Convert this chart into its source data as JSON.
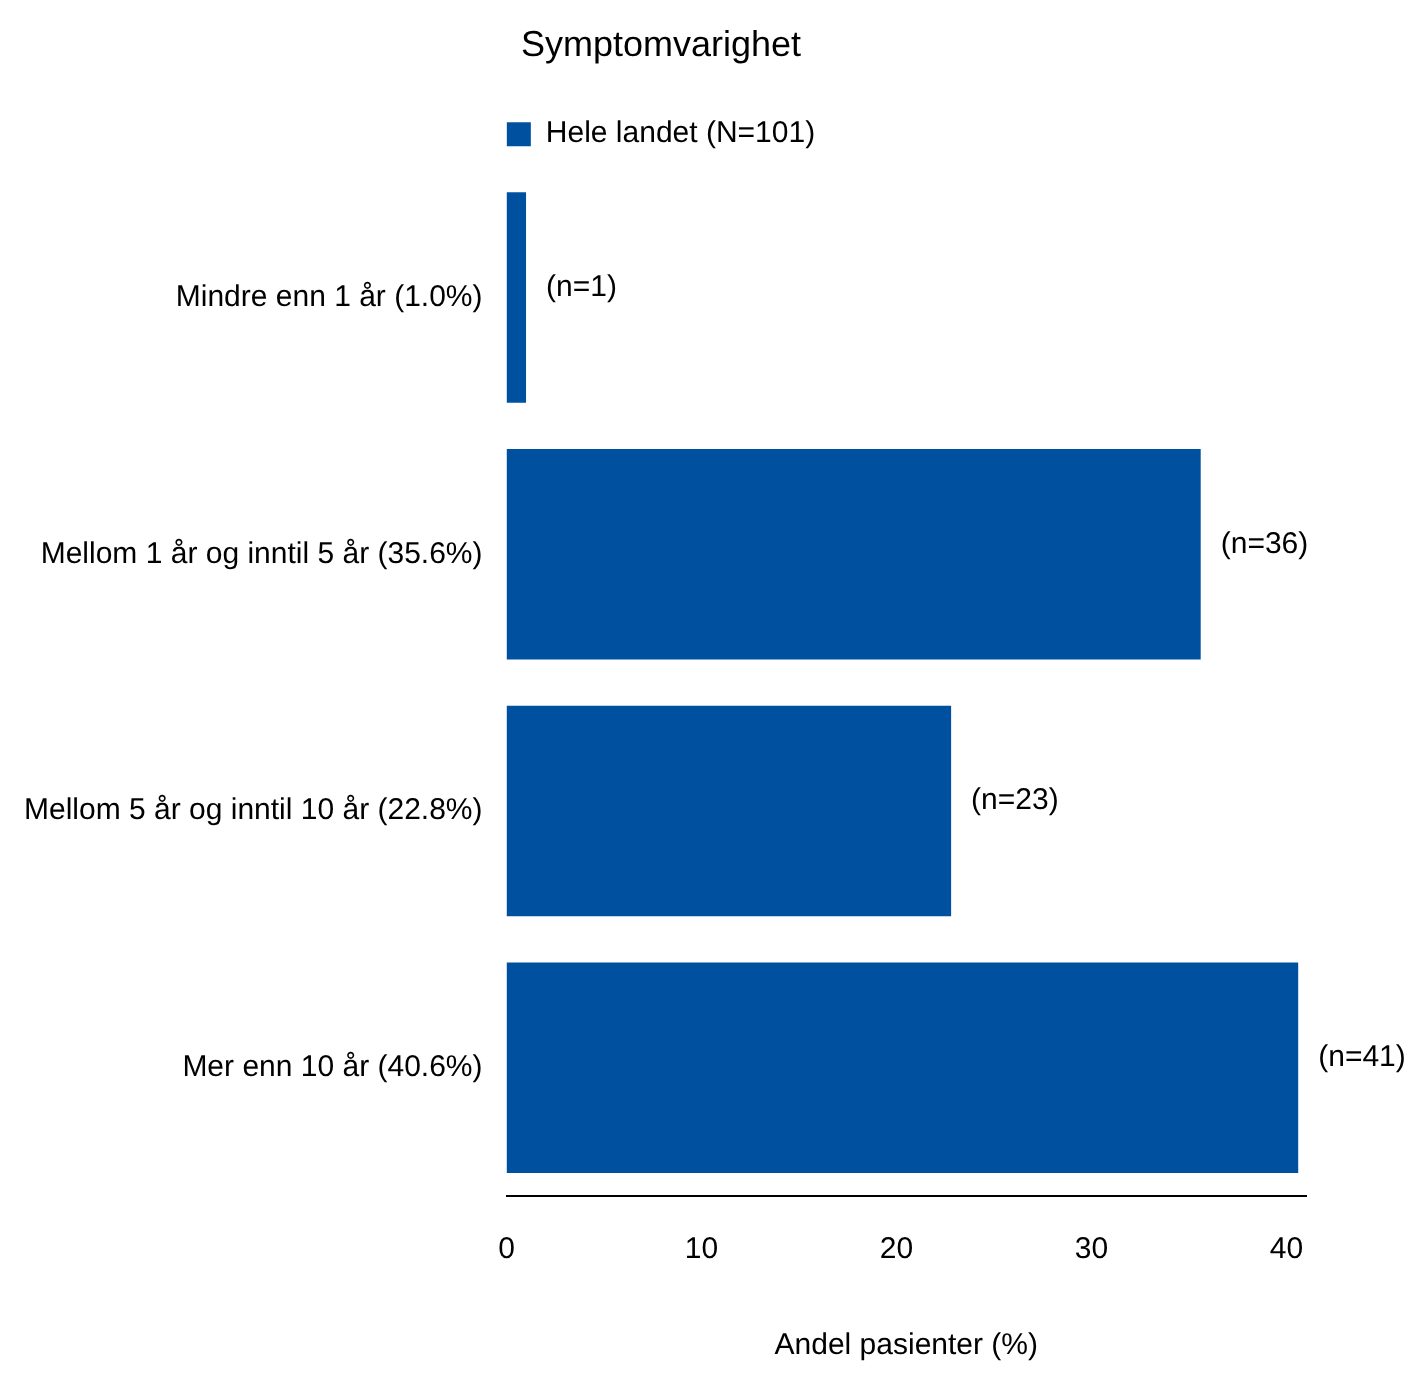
{
  "chart_data": {
    "type": "bar",
    "orientation": "horizontal",
    "title": "Symptomvarighet",
    "xlabel": "Andel pasienter (%)",
    "categories": [
      "Mindre enn 1 år (1.0%)",
      "Mellom 1 år og inntil 5 år (35.6%)",
      "Mellom 5 år og inntil 10 år (22.8%)",
      "Mer enn 10 år (40.6%)"
    ],
    "series": [
      {
        "name": "Hele landet (N=101)",
        "color": "#0050a0",
        "values": [
          1.0,
          35.6,
          22.8,
          40.6
        ],
        "value_labels": [
          "(n=1)",
          "(n=36)",
          "(n=23)",
          "(n=41)"
        ]
      }
    ],
    "xlim": [
      0,
      41
    ],
    "xticks": [
      0,
      10,
      20,
      30,
      40
    ],
    "grid": false,
    "legend": "top"
  }
}
